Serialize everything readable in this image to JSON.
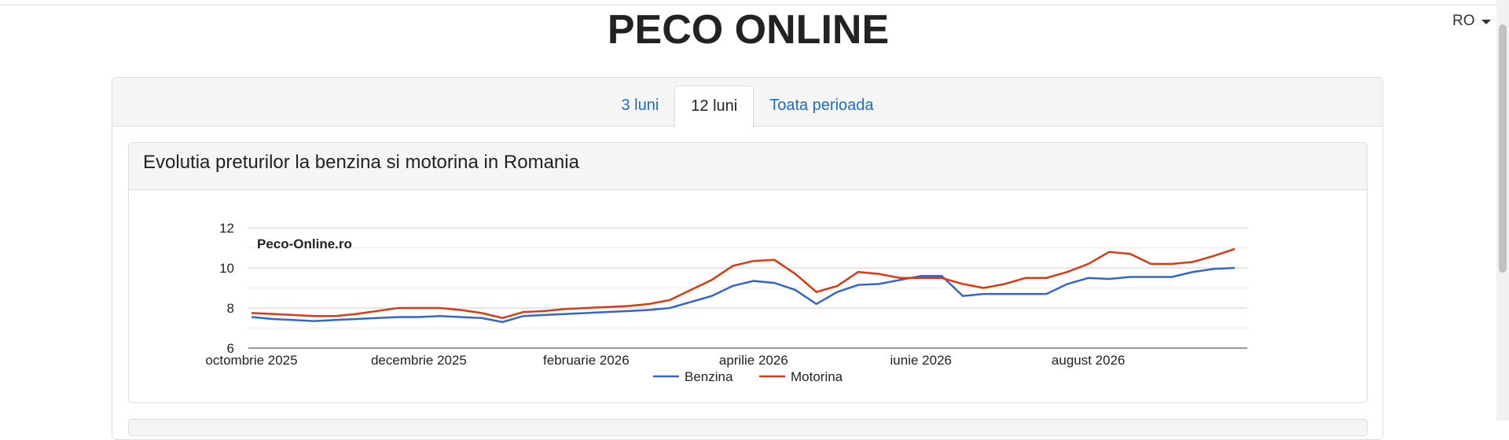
{
  "header": {
    "title": "PECO ONLINE",
    "language": "RO"
  },
  "tabs": {
    "items": [
      "3 luni",
      "12 luni",
      "Toata perioada"
    ],
    "active": 1
  },
  "card": {
    "title": "Evolutia preturilor la benzina si motorina in Romania"
  },
  "chart_data": {
    "type": "line",
    "watermark": "Peco-Online.ro",
    "x": [
      0,
      0.25,
      0.5,
      0.75,
      1,
      1.25,
      1.5,
      1.75,
      2,
      2.25,
      2.5,
      2.75,
      3,
      3.25,
      3.5,
      3.75,
      4,
      4.25,
      4.5,
      4.75,
      5,
      5.25,
      5.5,
      5.75,
      6,
      6.25,
      6.5,
      6.75,
      7,
      7.25,
      7.5,
      7.75,
      8,
      8.25,
      8.5,
      8.75,
      9,
      9.25,
      9.5,
      9.75,
      10,
      10.25,
      10.5,
      10.75,
      11,
      11.25,
      11.5,
      11.75
    ],
    "series": [
      {
        "name": "Benzina",
        "color": "#3366cc",
        "values": [
          7.55,
          7.45,
          7.4,
          7.35,
          7.4,
          7.45,
          7.5,
          7.55,
          7.55,
          7.6,
          7.55,
          7.5,
          7.3,
          7.6,
          7.65,
          7.7,
          7.75,
          7.8,
          7.85,
          7.9,
          8.0,
          8.3,
          8.6,
          9.1,
          9.35,
          9.25,
          8.9,
          8.2,
          8.8,
          9.15,
          9.2,
          9.4,
          9.6,
          9.6,
          8.6,
          8.7,
          8.7,
          8.7,
          8.7,
          9.2,
          9.5,
          9.45,
          9.55,
          9.55,
          9.55,
          9.8,
          9.95,
          10.0
        ]
      },
      {
        "name": "Motorina",
        "color": "#dc3912",
        "values": [
          7.75,
          7.7,
          7.65,
          7.6,
          7.6,
          7.7,
          7.85,
          8.0,
          8.0,
          8.0,
          7.9,
          7.75,
          7.5,
          7.8,
          7.85,
          7.95,
          8.0,
          8.05,
          8.1,
          8.2,
          8.4,
          8.9,
          9.4,
          10.1,
          10.35,
          10.4,
          9.7,
          8.8,
          9.1,
          9.8,
          9.7,
          9.5,
          9.5,
          9.5,
          9.2,
          9.0,
          9.2,
          9.5,
          9.5,
          9.8,
          10.2,
          10.8,
          10.7,
          10.2,
          10.2,
          10.3,
          10.6,
          10.95
        ]
      }
    ],
    "xlim": [
      0,
      11.9
    ],
    "xticks": [
      {
        "value": 0,
        "label": "octombrie 2025"
      },
      {
        "value": 2,
        "label": "decembrie 2025"
      },
      {
        "value": 4,
        "label": "februarie 2026"
      },
      {
        "value": 6,
        "label": "aprilie 2026"
      },
      {
        "value": 8,
        "label": "iunie 2026"
      },
      {
        "value": 10,
        "label": "august 2026"
      }
    ],
    "ylim": [
      6,
      12
    ],
    "yticks": [
      6,
      8,
      10,
      12
    ],
    "y_minor_ticks": [
      7,
      9,
      11
    ],
    "grid": true,
    "legend": "bottom"
  }
}
